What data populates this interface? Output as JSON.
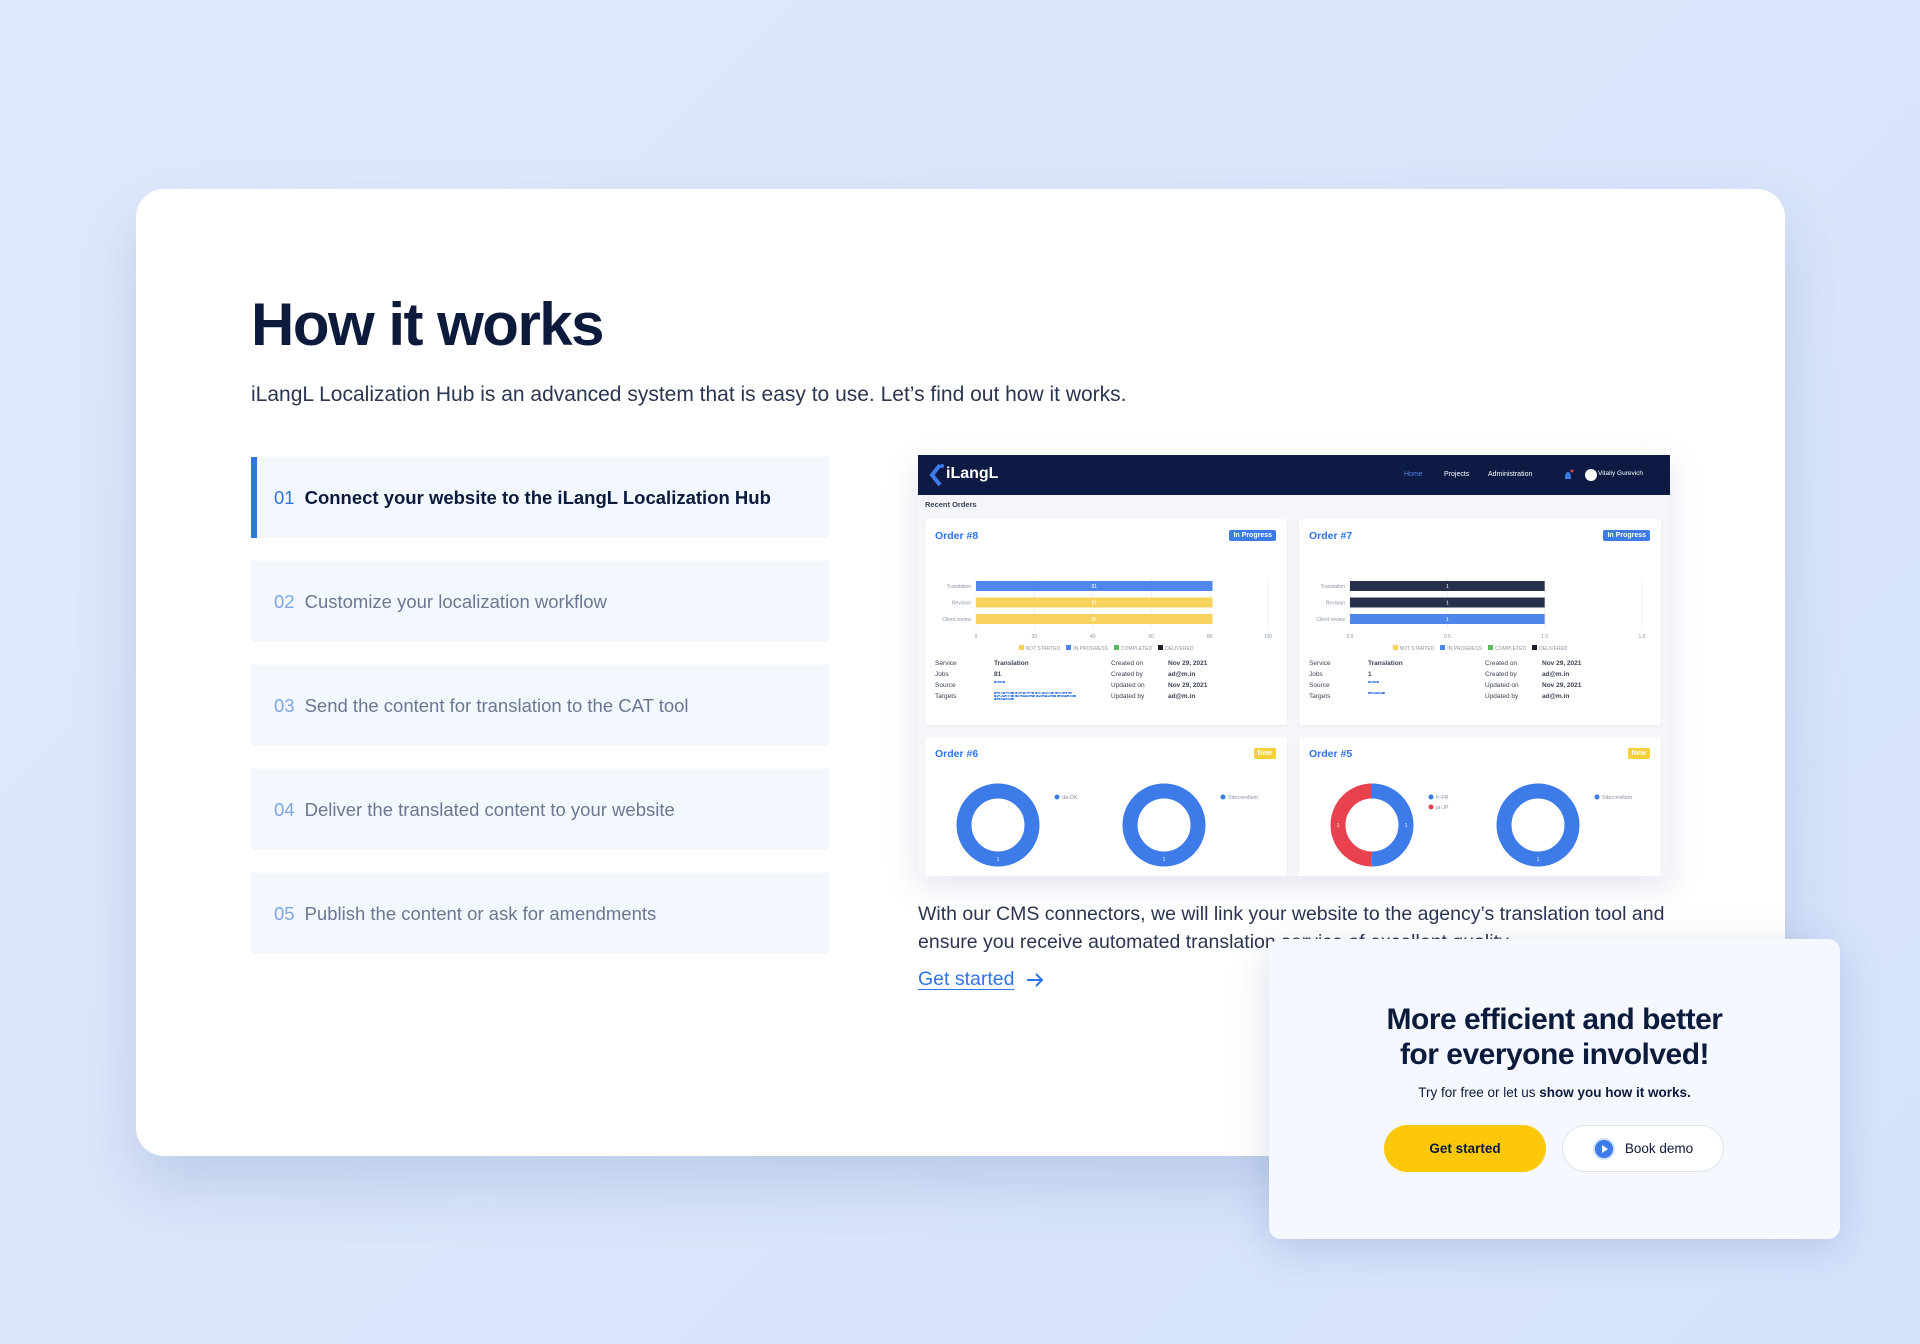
{
  "header": {
    "title": "How it works",
    "subtitle": "iLangL Localization Hub is an advanced system that is easy to use. Let’s find out how it works."
  },
  "steps": [
    {
      "number": "01",
      "label": "Connect your website to the iLangL Localization Hub",
      "active": true
    },
    {
      "number": "02",
      "label": "Customize your localization workflow"
    },
    {
      "number": "03",
      "label": "Send the content for translation to the CAT tool"
    },
    {
      "number": "04",
      "label": "Deliver the translated content to your website"
    },
    {
      "number": "05",
      "label": "Publish the content or ask for amendments"
    }
  ],
  "dashboard": {
    "logo": "iLangL",
    "nav": [
      "Home",
      "Projects",
      "Administration"
    ],
    "user": "Vitaliy Gurevich",
    "section": "Recent Orders",
    "legend": [
      {
        "label": "NOT STARTED",
        "color": "#f7d35e"
      },
      {
        "label": "IN PROGRESS",
        "color": "#4f86ea"
      },
      {
        "label": "COMPLETED",
        "color": "#5cb85c"
      },
      {
        "label": "DELIVERED",
        "color": "#1b1f2e"
      }
    ],
    "orders": [
      {
        "title": "Order #8",
        "status": "In Progress",
        "status_color": "#3d7be8",
        "ticks": [
          0,
          20,
          40,
          60,
          80,
          100
        ],
        "bars": [
          {
            "label": "Translation",
            "value": 81,
            "color": "#4f86ea"
          },
          {
            "label": "Revision",
            "value": 81,
            "color": "#f7d35e"
          },
          {
            "label": "Client review",
            "value": 81,
            "color": "#f7d35e"
          }
        ],
        "details": [
          {
            "label": "Service",
            "value": "Translation"
          },
          {
            "label": "Jobs",
            "value": "81"
          },
          {
            "label": "Source",
            "badges": [
              "EN"
            ]
          },
          {
            "label": "Targets",
            "badges": [
              "DA-DK",
              "ES-ES",
              "FR-FR",
              "JA-JP",
              "KA-GE",
              "NB-NO",
              "RU-RU",
              "SV-SE",
              "UK-UA"
            ]
          }
        ],
        "meta": [
          {
            "label": "Created on",
            "value": "Nov 29, 2021"
          },
          {
            "label": "Created by",
            "value": "ad@m.in"
          },
          {
            "label": "Updated on",
            "value": "Nov 29, 2021"
          },
          {
            "label": "Updated by",
            "value": "ad@m.in"
          }
        ]
      },
      {
        "title": "Order #7",
        "status": "In Progress",
        "status_color": "#3d7be8",
        "ticks": [
          {
            "value": 0,
            "label": "0.0"
          },
          {
            "value": 0.5,
            "label": "0.5"
          },
          {
            "value": 1,
            "label": "1.0"
          },
          {
            "value": 1.5,
            "label": "1.5"
          }
        ],
        "bars": [
          {
            "label": "Translation",
            "value": 1,
            "color": "#26304d"
          },
          {
            "label": "Revision",
            "value": 1,
            "color": "#26304d"
          },
          {
            "label": "Client review",
            "value": 1,
            "color": "#4f86ea"
          }
        ],
        "details": [
          {
            "label": "Service",
            "value": "Translation"
          },
          {
            "label": "Jobs",
            "value": "1"
          },
          {
            "label": "Source",
            "badges": [
              "EN"
            ]
          },
          {
            "label": "Targets",
            "badges": [
              "JA-JP"
            ]
          }
        ],
        "meta": [
          {
            "label": "Created on",
            "value": "Nov 29, 2021"
          },
          {
            "label": "Created by",
            "value": "ad@m.in"
          },
          {
            "label": "Updated on",
            "value": "Nov 29, 2021"
          },
          {
            "label": "Updated by",
            "value": "ad@m.in"
          }
        ]
      },
      {
        "title": "Order #6",
        "status": "New",
        "status_color": "#f5cf3c",
        "donuts": [
          [
            {
              "name": "da-DK",
              "value": 1,
              "color": "#3d7be8"
            }
          ],
          [
            {
              "name": "Sitecorellam",
              "value": 1,
              "color": "#3d7be8"
            }
          ]
        ]
      },
      {
        "title": "Order #5",
        "status": "New",
        "status_color": "#f5cf3c",
        "donuts": [
          [
            {
              "name": "fr-FR",
              "value": 1,
              "color": "#3d7be8"
            },
            {
              "name": "ja-JP",
              "value": 1,
              "color": "#e8424f"
            }
          ],
          [
            {
              "name": "Sitecorellam",
              "value": 1,
              "color": "#3d7be8"
            }
          ]
        ]
      }
    ]
  },
  "description": "With our CMS connectors, we will link your website to the agency’s translation tool and ensure you receive automated translation service of excellent quality.",
  "link": "Get started",
  "cta": {
    "title_lines": [
      "More efficient and better",
      "for everyone involved!"
    ],
    "text": "Try for free or let us ",
    "text_bold": "show you how it works.",
    "primary": "Get started",
    "secondary": "Book demo"
  }
}
